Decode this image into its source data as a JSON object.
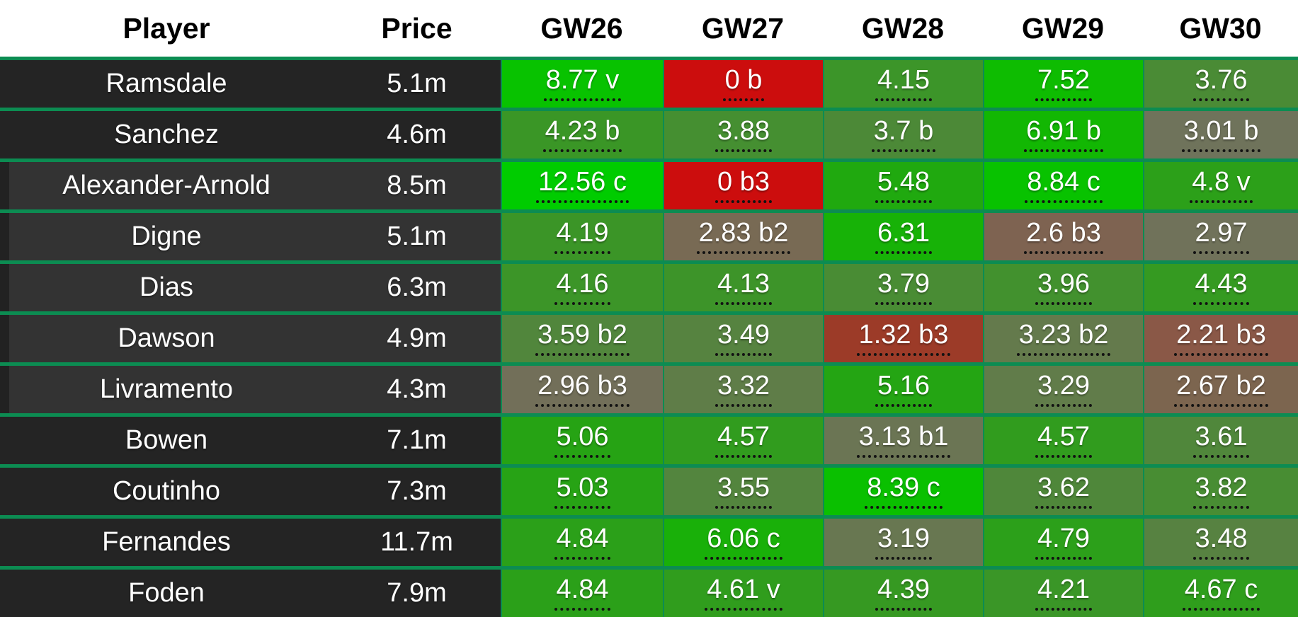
{
  "table": {
    "columns": [
      "Player",
      "Price",
      "GW26",
      "GW27",
      "GW28",
      "GW29",
      "GW30"
    ],
    "colors": {
      "header_bg": "#ffffff",
      "header_text": "#000000",
      "row_dark_bg": "#242424",
      "row_highlight_bg": "#333333",
      "row_highlight_left_strip": "#222222",
      "divider_green": "#0c8c52",
      "cell_text": "#ffffff",
      "underline_dots": "#121212",
      "zero_points_red": "#cc0d0d",
      "max_points_green": "#00cc00"
    },
    "rows": [
      {
        "player": "Ramsdale",
        "price": "5.1m",
        "highlight": false,
        "gw": [
          {
            "text": "8.77 v",
            "value": 8.77,
            "flag": "v",
            "color": "#08c200"
          },
          {
            "text": "0 b",
            "value": 0,
            "flag": "b",
            "color": "#cc0d0d"
          },
          {
            "text": "4.15",
            "value": 4.15,
            "flag": "",
            "color": "#3c9529"
          },
          {
            "text": "7.52",
            "value": 7.52,
            "flag": "",
            "color": "#0ebc01"
          },
          {
            "text": "3.76",
            "value": 3.76,
            "flag": "",
            "color": "#4a8b35"
          }
        ]
      },
      {
        "player": "Sanchez",
        "price": "4.6m",
        "highlight": false,
        "gw": [
          {
            "text": "4.23 b",
            "value": 4.23,
            "flag": "b",
            "color": "#3a9626"
          },
          {
            "text": "3.88",
            "value": 3.88,
            "flag": "",
            "color": "#458f31"
          },
          {
            "text": "3.7 b",
            "value": 3.7,
            "flag": "b",
            "color": "#4c8937"
          },
          {
            "text": "6.91 b",
            "value": 6.91,
            "flag": "b",
            "color": "#12b703"
          },
          {
            "text": "3.01 b",
            "value": 3.01,
            "flag": "b",
            "color": "#6f735b"
          }
        ]
      },
      {
        "player": "Alexander-Arnold",
        "price": "8.5m",
        "highlight": true,
        "gw": [
          {
            "text": "12.56 c",
            "value": 12.56,
            "flag": "c",
            "color": "#00cc00"
          },
          {
            "text": "0 b3",
            "value": 0,
            "flag": "b3",
            "color": "#cc0d0d"
          },
          {
            "text": "5.48",
            "value": 5.48,
            "flag": "",
            "color": "#20a90f"
          },
          {
            "text": "8.84 c",
            "value": 8.84,
            "flag": "c",
            "color": "#08c200"
          },
          {
            "text": "4.8 v",
            "value": 4.8,
            "flag": "v",
            "color": "#2ca019"
          }
        ]
      },
      {
        "player": "Digne",
        "price": "5.1m",
        "highlight": true,
        "gw": [
          {
            "text": "4.19",
            "value": 4.19,
            "flag": "",
            "color": "#3b9527"
          },
          {
            "text": "2.83 b2",
            "value": 2.83,
            "flag": "b2",
            "color": "#786a54"
          },
          {
            "text": "6.31",
            "value": 6.31,
            "flag": "",
            "color": "#17b207"
          },
          {
            "text": "2.6 b3",
            "value": 2.6,
            "flag": "b3",
            "color": "#7e6351"
          },
          {
            "text": "2.97",
            "value": 2.97,
            "flag": "",
            "color": "#70725a"
          }
        ]
      },
      {
        "player": "Dias",
        "price": "6.3m",
        "highlight": true,
        "gw": [
          {
            "text": "4.16",
            "value": 4.16,
            "flag": "",
            "color": "#3c9528"
          },
          {
            "text": "4.13",
            "value": 4.13,
            "flag": "",
            "color": "#3d9429"
          },
          {
            "text": "3.79",
            "value": 3.79,
            "flag": "",
            "color": "#498c34"
          },
          {
            "text": "3.96",
            "value": 3.96,
            "flag": "",
            "color": "#42912e"
          },
          {
            "text": "4.43",
            "value": 4.43,
            "flag": "",
            "color": "#359a21"
          }
        ]
      },
      {
        "player": "Dawson",
        "price": "4.9m",
        "highlight": true,
        "gw": [
          {
            "text": "3.59 b2",
            "value": 3.59,
            "flag": "b2",
            "color": "#51863c"
          },
          {
            "text": "3.49",
            "value": 3.49,
            "flag": "",
            "color": "#568340"
          },
          {
            "text": "1.32 b3",
            "value": 1.32,
            "flag": "b3",
            "color": "#9c3b28"
          },
          {
            "text": "3.23 b2",
            "value": 3.23,
            "flag": "b2",
            "color": "#647a4c"
          },
          {
            "text": "2.21 b3",
            "value": 2.21,
            "flag": "b3",
            "color": "#8a5847"
          }
        ]
      },
      {
        "player": "Livramento",
        "price": "4.3m",
        "highlight": true,
        "gw": [
          {
            "text": "2.96 b3",
            "value": 2.96,
            "flag": "b3",
            "color": "#726f59"
          },
          {
            "text": "3.32",
            "value": 3.32,
            "flag": "",
            "color": "#5f7d48"
          },
          {
            "text": "5.16",
            "value": 5.16,
            "flag": "",
            "color": "#24a513"
          },
          {
            "text": "3.29",
            "value": 3.29,
            "flag": "",
            "color": "#617c4a"
          },
          {
            "text": "2.67 b2",
            "value": 2.67,
            "flag": "b2",
            "color": "#7c654f"
          }
        ]
      },
      {
        "player": "Bowen",
        "price": "7.1m",
        "highlight": false,
        "gw": [
          {
            "text": "5.06",
            "value": 5.06,
            "flag": "",
            "color": "#26a314"
          },
          {
            "text": "4.57",
            "value": 4.57,
            "flag": "",
            "color": "#319c1e"
          },
          {
            "text": "3.13 b1",
            "value": 3.13,
            "flag": "b1",
            "color": "#6b7554"
          },
          {
            "text": "4.57",
            "value": 4.57,
            "flag": "",
            "color": "#319c1e"
          },
          {
            "text": "3.61",
            "value": 3.61,
            "flag": "",
            "color": "#50873b"
          }
        ]
      },
      {
        "player": "Coutinho",
        "price": "7.3m",
        "highlight": false,
        "gw": [
          {
            "text": "5.03",
            "value": 5.03,
            "flag": "",
            "color": "#27a315"
          },
          {
            "text": "3.55",
            "value": 3.55,
            "flag": "",
            "color": "#53853e"
          },
          {
            "text": "8.39 c",
            "value": 8.39,
            "flag": "c",
            "color": "#0ac000"
          },
          {
            "text": "3.62",
            "value": 3.62,
            "flag": "",
            "color": "#4f873a"
          },
          {
            "text": "3.82",
            "value": 3.82,
            "flag": "",
            "color": "#488d33"
          }
        ]
      },
      {
        "player": "Fernandes",
        "price": "11.7m",
        "highlight": false,
        "gw": [
          {
            "text": "4.84",
            "value": 4.84,
            "flag": "",
            "color": "#2ba019"
          },
          {
            "text": "6.06 c",
            "value": 6.06,
            "flag": "c",
            "color": "#19b009"
          },
          {
            "text": "3.19",
            "value": 3.19,
            "flag": "",
            "color": "#687751"
          },
          {
            "text": "4.79",
            "value": 4.79,
            "flag": "",
            "color": "#2ca01a"
          },
          {
            "text": "3.48",
            "value": 3.48,
            "flag": "",
            "color": "#578241"
          }
        ]
      },
      {
        "player": "Foden",
        "price": "7.9m",
        "highlight": false,
        "gw": [
          {
            "text": "4.84",
            "value": 4.84,
            "flag": "",
            "color": "#2ba019"
          },
          {
            "text": "4.61 v",
            "value": 4.61,
            "flag": "v",
            "color": "#309d1d"
          },
          {
            "text": "4.39",
            "value": 4.39,
            "flag": "",
            "color": "#369922"
          },
          {
            "text": "4.21",
            "value": 4.21,
            "flag": "",
            "color": "#3a9627"
          },
          {
            "text": "4.67 c",
            "value": 4.67,
            "flag": "c",
            "color": "#2f9e1c"
          }
        ]
      }
    ]
  }
}
